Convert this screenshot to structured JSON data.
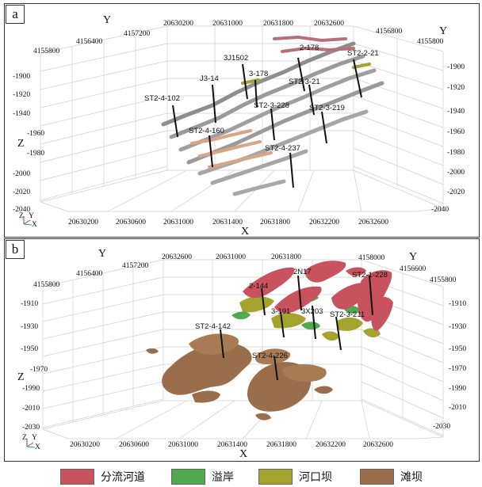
{
  "panel_a": {
    "tag": "a",
    "axis_names": {
      "x": "X",
      "y": "Y",
      "z": "Z",
      "y_right": "Y"
    },
    "x_ticks": [
      "20630200",
      "20630600",
      "20631000",
      "20631400",
      "20631800",
      "20632200",
      "20632600"
    ],
    "x_top_ticks": [
      "20630200",
      "20631000",
      "20631800",
      "20632600"
    ],
    "y_left_ticks": [
      "4155800",
      "4156400",
      "4157200"
    ],
    "y_right_ticks": [
      "4156800",
      "4155800"
    ],
    "z_left_ticks": [
      "-1900",
      "-1920",
      "-1940",
      "-1960",
      "-1980",
      "-2000",
      "-2020",
      "-2040"
    ],
    "z_right_ticks": [
      "-1900",
      "-1920",
      "-1940",
      "-1960",
      "-1980",
      "-2000",
      "-2020",
      "-2040"
    ],
    "wells": [
      "3J1502",
      "2-178",
      "ST2-2-21",
      "J3-14",
      "3-178",
      "ST2-3-21",
      "ST2-4-102",
      "ST2-3-228",
      "ST2-3-219",
      "ST2-4-160",
      "ST2-4-237"
    ],
    "orient": {
      "z": "Z",
      "y": "Y",
      "x": "X"
    }
  },
  "panel_b": {
    "tag": "b",
    "axis_names": {
      "x": "X",
      "y": "Y",
      "z": "Z",
      "y_right": "Y"
    },
    "x_ticks": [
      "20630200",
      "20630600",
      "20631000",
      "20631400",
      "20631800",
      "20632200",
      "20632600"
    ],
    "x_top_ticks": [
      "20632600",
      "20631000",
      "20631800"
    ],
    "y_left_ticks": [
      "4155800",
      "4156400",
      "4157200"
    ],
    "y_right_ticks": [
      "4158000",
      "4156600",
      "4155800"
    ],
    "z_left_ticks": [
      "-1910",
      "-1930",
      "-1950",
      "-1970",
      "-1990",
      "-2010",
      "-2030"
    ],
    "z_right_ticks": [
      "-1910",
      "-1930",
      "-1950",
      "-1970",
      "-1990",
      "-2010",
      "-2030"
    ],
    "wells": [
      "2N17",
      "ST2-1-228",
      "2-144",
      "3-191",
      "3X203",
      "ST2-3-211",
      "ST2-4-142",
      "ST2-4-226"
    ],
    "orient": {
      "z": "Z",
      "y": "Y",
      "x": "X"
    }
  },
  "legend": [
    {
      "label": "分流河道",
      "color": "#c8525e"
    },
    {
      "label": "溢岸",
      "color": "#4faa4f"
    },
    {
      "label": "河口坝",
      "color": "#a3a32e"
    },
    {
      "label": "滩坝",
      "color": "#9a6e4a"
    }
  ]
}
